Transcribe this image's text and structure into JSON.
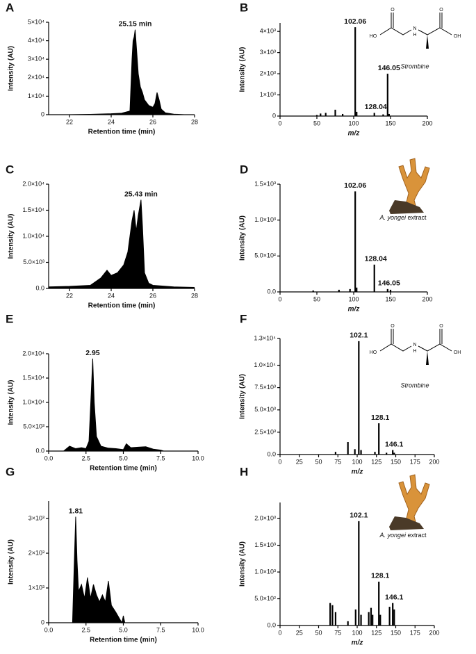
{
  "chart_data": [
    {
      "type": "area",
      "panel": "A",
      "xlabel": "Retention time (min)",
      "ylabel": "Intensity (AU)",
      "color": "#000000",
      "x": [
        21,
        22,
        23,
        24,
        24.5,
        24.9,
        25.0,
        25.05,
        25.1,
        25.15,
        25.2,
        25.3,
        25.4,
        25.5,
        25.6,
        25.8,
        26.0,
        26.1,
        26.2,
        26.3,
        26.4,
        26.6,
        27,
        27.5,
        28
      ],
      "values": [
        0,
        0,
        200,
        500,
        800,
        2000,
        30000,
        40000,
        42000,
        46000,
        38000,
        22000,
        15000,
        12000,
        8000,
        5000,
        4000,
        6000,
        12000,
        8000,
        3000,
        1000,
        300,
        0,
        0
      ],
      "xlim": [
        21,
        28
      ],
      "xticks": [
        22,
        24,
        26,
        28
      ],
      "ylim": [
        0,
        50000
      ],
      "yticks": [
        0,
        {
          "value": 10000,
          "label": "1×10⁴"
        },
        {
          "value": 20000,
          "label": "2×10⁴"
        },
        {
          "value": 30000,
          "label": "3×10⁴"
        },
        {
          "value": 40000,
          "label": "4×10⁴"
        },
        {
          "value": 50000,
          "label": "5×10⁴"
        }
      ],
      "annotations": [
        {
          "text": "25.15 min",
          "x": 25.15,
          "y": 46000
        }
      ]
    },
    {
      "type": "stick",
      "panel": "B",
      "xlabel": "m/z",
      "ylabel": "Intensity (AU)",
      "color": "#000000",
      "x": [
        50,
        55,
        62,
        75,
        85,
        102.06,
        104,
        128.04,
        140,
        146.05,
        148
      ],
      "values": [
        50,
        120,
        150,
        300,
        100,
        4200,
        200,
        150,
        80,
        2000,
        100
      ],
      "xlim": [
        0,
        200
      ],
      "xticks": [
        0,
        50,
        100,
        150,
        200
      ],
      "ylim": [
        0,
        4400
      ],
      "yticks": [
        0,
        {
          "value": 1000,
          "label": "1×10³"
        },
        {
          "value": 2000,
          "label": "2×10³"
        },
        {
          "value": 3000,
          "label": "3×10³"
        },
        {
          "value": 4000,
          "label": "4×10³"
        }
      ],
      "annotations": [
        {
          "text": "102.06",
          "x": 102.06,
          "y": 4200
        },
        {
          "text": "146.05",
          "x": 146.05,
          "y": 2000
        },
        {
          "text": "128.04",
          "x": 128.04,
          "y": 150
        }
      ],
      "inset": {
        "caption": "Strombine",
        "atoms": [
          "HO",
          "O",
          "N",
          "H",
          "O",
          "OH"
        ]
      }
    },
    {
      "type": "area",
      "panel": "C",
      "xlabel": "Retention time (min)",
      "ylabel": "Intensity (AU)",
      "color": "#000000",
      "x": [
        21,
        22,
        23,
        23.5,
        23.8,
        24.0,
        24.3,
        24.6,
        24.8,
        24.9,
        25.0,
        25.1,
        25.2,
        25.3,
        25.43,
        25.5,
        25.6,
        25.8,
        26,
        27,
        28
      ],
      "values": [
        300,
        400,
        600,
        2000,
        3500,
        2500,
        3000,
        4500,
        7000,
        10000,
        13000,
        15000,
        11000,
        14000,
        17000,
        12000,
        3000,
        1000,
        600,
        300,
        200
      ],
      "xlim": [
        21,
        28
      ],
      "xticks": [
        22,
        24,
        26,
        28
      ],
      "ylim": [
        0,
        20000
      ],
      "yticks": [
        {
          "value": 0,
          "label": "0.0"
        },
        {
          "value": 5000,
          "label": "5.0×10³"
        },
        {
          "value": 10000,
          "label": "1.0×10⁴"
        },
        {
          "value": 15000,
          "label": "1.5×10⁴"
        },
        {
          "value": 20000,
          "label": "2.0×10⁴"
        }
      ],
      "annotations": [
        {
          "text": "25.43 min",
          "x": 25.43,
          "y": 17000
        }
      ]
    },
    {
      "type": "stick",
      "panel": "D",
      "xlabel": "m/z",
      "ylabel": "Intensity (AU)",
      "color": "#000000",
      "x": [
        45,
        80,
        95,
        102.06,
        104,
        128.04,
        146.05,
        150
      ],
      "values": [
        20,
        30,
        40,
        1400,
        60,
        380,
        40,
        30
      ],
      "xlim": [
        0,
        200
      ],
      "xticks": [
        0,
        50,
        100,
        150,
        200
      ],
      "ylim": [
        0,
        1500
      ],
      "yticks": [
        {
          "value": 0,
          "label": "0.0"
        },
        {
          "value": 500,
          "label": "5.0×10²"
        },
        {
          "value": 1000,
          "label": "1.0×10³"
        },
        {
          "value": 1500,
          "label": "1.5×10³"
        }
      ],
      "annotations": [
        {
          "text": "102.06",
          "x": 102.06,
          "y": 1400
        },
        {
          "text": "128.04",
          "x": 128.04,
          "y": 380
        },
        {
          "text": "146.05",
          "x": 146.05,
          "y": 40
        }
      ],
      "inset": {
        "caption_italic": "A. yongei",
        "caption": "extract"
      }
    },
    {
      "type": "area",
      "panel": "E",
      "xlabel": "Retention time (min)",
      "ylabel": "Intensity (AU)",
      "color": "#000000",
      "x": [
        0,
        1,
        1.4,
        1.8,
        2.2,
        2.5,
        2.7,
        2.85,
        2.95,
        3.05,
        3.2,
        3.5,
        4,
        4.5,
        5,
        5.2,
        5.5,
        6,
        6.5,
        7,
        7.5,
        7.7,
        8,
        10
      ],
      "values": [
        0,
        0,
        1000,
        500,
        700,
        500,
        2000,
        12000,
        19000,
        10000,
        3000,
        1000,
        600,
        500,
        300,
        1500,
        700,
        800,
        900,
        400,
        200,
        0,
        0,
        0
      ],
      "xlim": [
        0,
        10
      ],
      "xticks": [
        {
          "value": 0,
          "label": "0.0"
        },
        2.5,
        {
          "value": 5,
          "label": "5.0"
        },
        7.5,
        {
          "value": 10,
          "label": "10.0"
        }
      ],
      "ylim": [
        0,
        20000
      ],
      "yticks": [
        {
          "value": 0,
          "label": "0.0"
        },
        {
          "value": 5000,
          "label": "5.0×10³"
        },
        {
          "value": 10000,
          "label": "1.0×10⁴"
        },
        {
          "value": 15000,
          "label": "1.5×10⁴"
        },
        {
          "value": 20000,
          "label": "2.0×10⁴"
        }
      ],
      "annotations": [
        {
          "text": "2.95",
          "x": 2.95,
          "y": 19000
        }
      ]
    },
    {
      "type": "stick",
      "panel": "F",
      "xlabel": "m/z",
      "ylabel": "Intensity (AU)",
      "color": "#000000",
      "x": [
        72,
        88,
        97,
        102.1,
        105,
        123,
        128.1,
        138,
        146.1,
        148
      ],
      "values": [
        300,
        1400,
        600,
        12700,
        500,
        300,
        3500,
        200,
        500,
        200
      ],
      "xlim": [
        0,
        200
      ],
      "xticks": [
        0,
        25,
        50,
        75,
        100,
        125,
        150,
        175,
        200
      ],
      "ylim": [
        0,
        13000
      ],
      "yticks": [
        {
          "value": 0,
          "label": "0.0"
        },
        {
          "value": 2500,
          "label": "2.5×10³"
        },
        {
          "value": 5000,
          "label": "5.0×10³"
        },
        {
          "value": 7500,
          "label": "7.5×10³"
        },
        {
          "value": 10000,
          "label": "1.0×10⁴"
        },
        {
          "value": 13000,
          "label": "1.3×10⁴"
        }
      ],
      "annotations": [
        {
          "text": "102.1",
          "x": 102.1,
          "y": 12700
        },
        {
          "text": "128.1",
          "x": 128.1,
          "y": 3500
        },
        {
          "text": "146.1",
          "x": 146.1,
          "y": 500
        }
      ],
      "inset": {
        "caption": "Strombine",
        "atoms": [
          "HO",
          "O",
          "N",
          "H",
          "O",
          "OH"
        ]
      }
    },
    {
      "type": "area",
      "panel": "G",
      "xlabel": "Retention time (min)",
      "ylabel": "Intensity (AU)",
      "color": "#000000",
      "x": [
        0,
        1,
        1.6,
        1.7,
        1.81,
        1.9,
        2.0,
        2.2,
        2.4,
        2.6,
        2.8,
        3.0,
        3.2,
        3.4,
        3.6,
        3.8,
        4.0,
        4.2,
        4.5,
        4.9,
        5.0,
        5.1,
        6,
        10
      ],
      "values": [
        0,
        0,
        0,
        1500,
        3050,
        1800,
        900,
        1100,
        700,
        1300,
        700,
        1100,
        800,
        600,
        800,
        600,
        1200,
        500,
        300,
        0,
        200,
        0,
        0,
        0
      ],
      "xlim": [
        0,
        10
      ],
      "xticks": [
        {
          "value": 0,
          "label": "0.0"
        },
        2.5,
        {
          "value": 5,
          "label": "5.0"
        },
        7.5,
        {
          "value": 10,
          "label": "10.0"
        }
      ],
      "ylim": [
        0,
        3500
      ],
      "yticks": [
        0,
        {
          "value": 1000,
          "label": "1×10³"
        },
        {
          "value": 2000,
          "label": "2×10³"
        },
        {
          "value": 3000,
          "label": "3×10³"
        }
      ],
      "annotations": [
        {
          "text": "1.81",
          "x": 1.81,
          "y": 3050
        }
      ]
    },
    {
      "type": "stick",
      "panel": "H",
      "xlabel": "m/z",
      "ylabel": "Intensity (AU)",
      "color": "#000000",
      "x": [
        65,
        68,
        72,
        88,
        98,
        102.1,
        105,
        115,
        118,
        120,
        128.1,
        130,
        142,
        146.1,
        148
      ],
      "values": [
        420,
        380,
        250,
        80,
        300,
        1950,
        200,
        250,
        330,
        200,
        820,
        200,
        350,
        420,
        300
      ],
      "xlim": [
        0,
        200
      ],
      "xticks": [
        0,
        25,
        50,
        75,
        100,
        125,
        150,
        175,
        200
      ],
      "ylim": [
        0,
        2300
      ],
      "yticks": [
        {
          "value": 0,
          "label": "0.0"
        },
        {
          "value": 500,
          "label": "5.0×10²"
        },
        {
          "value": 1000,
          "label": "1.0×10³"
        },
        {
          "value": 1500,
          "label": "1.5×10³"
        },
        {
          "value": 2000,
          "label": "2.0×10³"
        }
      ],
      "annotations": [
        {
          "text": "102.1",
          "x": 102.1,
          "y": 1950
        },
        {
          "text": "128.1",
          "x": 128.1,
          "y": 820
        },
        {
          "text": "146.1",
          "x": 146.1,
          "y": 420
        }
      ],
      "inset": {
        "caption_italic": "A. yongei",
        "caption": "extract"
      }
    }
  ]
}
